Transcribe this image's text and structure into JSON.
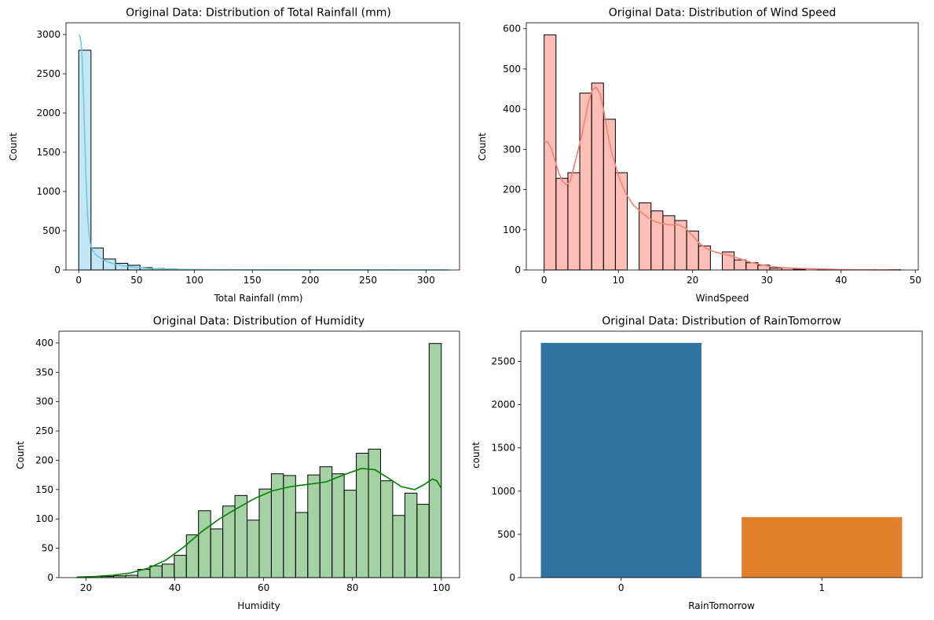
{
  "chart_data": [
    {
      "type": "bar",
      "title": "Original Data: Distribution of Total Rainfall (mm)",
      "xlabel": "Total Rainfall (mm)",
      "ylabel": "Count",
      "xlim": [
        -11,
        329
      ],
      "ylim": [
        0,
        3150
      ],
      "xticks": [
        0,
        50,
        100,
        150,
        200,
        250,
        300
      ],
      "yticks": [
        0,
        500,
        1000,
        1500,
        2000,
        2500,
        3000
      ],
      "bin_start": 0,
      "bin_width": 10.6,
      "counts": [
        2800,
        280,
        140,
        85,
        60,
        30,
        18,
        12,
        8,
        6,
        5,
        4,
        3,
        3,
        2,
        2,
        2,
        1,
        1,
        1,
        1,
        1,
        1,
        1,
        0,
        1,
        0,
        0,
        1,
        1
      ],
      "kde": [
        [
          0,
          3000
        ],
        [
          1,
          2980
        ],
        [
          2,
          2900
        ],
        [
          3,
          2700
        ],
        [
          4,
          2300
        ],
        [
          5,
          1800
        ],
        [
          6,
          1300
        ],
        [
          7,
          900
        ],
        [
          8,
          620
        ],
        [
          9,
          450
        ],
        [
          10,
          340
        ],
        [
          12,
          250
        ],
        [
          15,
          190
        ],
        [
          20,
          140
        ],
        [
          25,
          105
        ],
        [
          30,
          80
        ],
        [
          40,
          50
        ],
        [
          50,
          32
        ],
        [
          60,
          20
        ],
        [
          80,
          9
        ],
        [
          100,
          5
        ],
        [
          150,
          2
        ],
        [
          200,
          1
        ],
        [
          320,
          0
        ]
      ],
      "colors": {
        "fill": "#87ceeb",
        "line": "#70c8e0",
        "edge": "#000000"
      }
    },
    {
      "type": "bar",
      "title": "Original Data: Distribution of Wind Speed",
      "xlabel": "WindSpeed",
      "ylabel": "Count",
      "xlim": [
        -2.4,
        50.4
      ],
      "ylim": [
        0,
        615
      ],
      "xticks": [
        0,
        10,
        20,
        30,
        40,
        50
      ],
      "yticks": [
        0,
        100,
        200,
        300,
        400,
        500,
        600
      ],
      "bin_start": 0,
      "bin_width": 1.6,
      "counts": [
        585,
        228,
        242,
        440,
        465,
        375,
        242,
        0,
        167,
        147,
        135,
        123,
        97,
        60,
        0,
        45,
        25,
        18,
        12,
        5,
        5,
        2,
        0,
        1,
        1,
        1,
        0,
        1,
        0,
        1
      ],
      "kde": [
        [
          0,
          320
        ],
        [
          0.5,
          318
        ],
        [
          1,
          300
        ],
        [
          1.5,
          270
        ],
        [
          2,
          240
        ],
        [
          2.5,
          220
        ],
        [
          3,
          212
        ],
        [
          3.5,
          220
        ],
        [
          4,
          255
        ],
        [
          5,
          330
        ],
        [
          6,
          420
        ],
        [
          6.5,
          448
        ],
        [
          7,
          455
        ],
        [
          7.5,
          440
        ],
        [
          8,
          400
        ],
        [
          8.5,
          345
        ],
        [
          9,
          300
        ],
        [
          10,
          235
        ],
        [
          11,
          190
        ],
        [
          12,
          162
        ],
        [
          13,
          145
        ],
        [
          14,
          130
        ],
        [
          15,
          120
        ],
        [
          16,
          115
        ],
        [
          17,
          112
        ],
        [
          18,
          113
        ],
        [
          19,
          105
        ],
        [
          20,
          85
        ],
        [
          21,
          65
        ],
        [
          22,
          52
        ],
        [
          23,
          45
        ],
        [
          24,
          40
        ],
        [
          25,
          36
        ],
        [
          26,
          30
        ],
        [
          27,
          24
        ],
        [
          28,
          18
        ],
        [
          30,
          10
        ],
        [
          32,
          6
        ],
        [
          34,
          4
        ],
        [
          36,
          3
        ],
        [
          38,
          2
        ],
        [
          40,
          1
        ],
        [
          43,
          0.5
        ],
        [
          48,
          0
        ]
      ],
      "colors": {
        "fill": "#fa8072",
        "line": "#fa8072",
        "edge": "#000000"
      }
    },
    {
      "type": "bar",
      "title": "Original Data: Distribution of Humidity",
      "xlabel": "Humidity",
      "ylabel": "Count",
      "xlim": [
        13.9,
        104.1
      ],
      "ylim": [
        0,
        420
      ],
      "xticks": [
        20,
        40,
        60,
        80,
        100
      ],
      "yticks": [
        0,
        50,
        100,
        150,
        200,
        250,
        300,
        350,
        400
      ],
      "bin_start": 18,
      "bin_width": 2.733,
      "counts": [
        1,
        2,
        2,
        3,
        4,
        14,
        20,
        23,
        38,
        73,
        114,
        83,
        122,
        140,
        98,
        151,
        177,
        174,
        111,
        175,
        189,
        177,
        149,
        212,
        219,
        165,
        106,
        144,
        125,
        399
      ],
      "kde": [
        [
          18,
          1
        ],
        [
          22,
          2
        ],
        [
          26,
          4
        ],
        [
          30,
          8
        ],
        [
          34,
          16
        ],
        [
          38,
          30
        ],
        [
          42,
          52
        ],
        [
          46,
          78
        ],
        [
          50,
          100
        ],
        [
          54,
          118
        ],
        [
          58,
          135
        ],
        [
          62,
          148
        ],
        [
          66,
          155
        ],
        [
          70,
          159
        ],
        [
          74,
          163
        ],
        [
          78,
          175
        ],
        [
          82,
          186
        ],
        [
          85,
          184
        ],
        [
          88,
          170
        ],
        [
          91,
          155
        ],
        [
          94,
          150
        ],
        [
          96,
          158
        ],
        [
          98,
          168
        ],
        [
          99,
          165
        ],
        [
          100,
          152
        ]
      ],
      "colors": {
        "fill": "#4ca64c",
        "line": "#008000",
        "edge": "#000000"
      }
    },
    {
      "type": "bar",
      "title": "Original Data: Distribution of RainTomorrow",
      "xlabel": "RainTomorrow",
      "ylabel": "count",
      "categories": [
        "0",
        "1"
      ],
      "values": [
        2715,
        700
      ],
      "ylim": [
        0,
        2850
      ],
      "yticks": [
        0,
        500,
        1000,
        1500,
        2000,
        2500
      ],
      "colors": {
        "bars": [
          "#3274a1",
          "#e1812c"
        ]
      }
    }
  ]
}
